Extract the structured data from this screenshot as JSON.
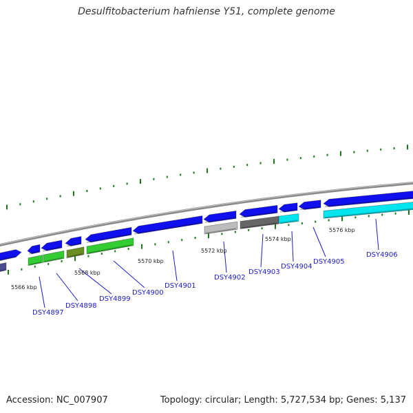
{
  "title": "Desulfitobacterium hafniense Y51, complete genome",
  "footer": {
    "accession": "Accession: NC_007907",
    "summary": "Topology: circular; Length: 5,727,534 bp; Genes: 5,137"
  },
  "colors": {
    "backbone": "#8a8a8a",
    "ticks": "#1a7a1a",
    "gene_blue": "#1010ee",
    "gene_green": "#33cc33",
    "gene_olive": "#6b8e23",
    "gene_grey": "#bdbdbd",
    "gene_darkgrey": "#666666",
    "gene_cyan": "#00e5ee",
    "gene_slate": "#4b4b8f",
    "label_blue": "#1a1acc"
  },
  "kbp_labels": [
    "5566 kbp",
    "5568 kbp",
    "5570 kbp",
    "5572 kbp",
    "5574 kbp",
    "5576 kbp"
  ],
  "gene_labels": [
    "DSY4897",
    "DSY4898",
    "DSY4899",
    "DSY4900",
    "DSY4901",
    "DSY4902",
    "DSY4903",
    "DSY4904",
    "DSY4905",
    "DSY4906"
  ]
}
